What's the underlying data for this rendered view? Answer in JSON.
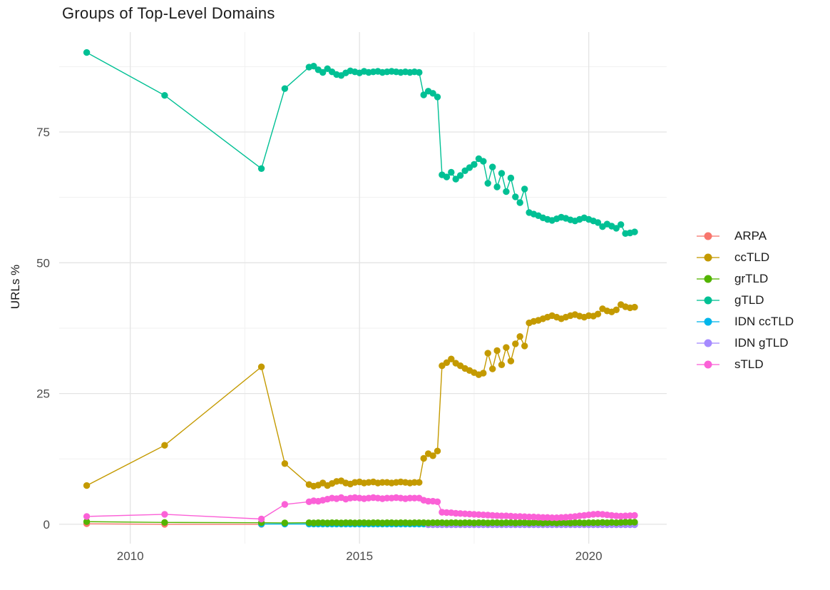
{
  "title": "Groups of Top-Level Domains",
  "legend": {
    "items": [
      {
        "label": "ARPA",
        "color": "#F8766D"
      },
      {
        "label": "ccTLD",
        "color": "#C49A00"
      },
      {
        "label": "grTLD",
        "color": "#53B400"
      },
      {
        "label": "gTLD",
        "color": "#00C094"
      },
      {
        "label": "IDN ccTLD",
        "color": "#00B6EB"
      },
      {
        "label": "IDN gTLD",
        "color": "#A58AFF"
      },
      {
        "label": "sTLD",
        "color": "#FB61D7"
      }
    ]
  },
  "chart_data": {
    "type": "line",
    "title": "Groups of Top-Level Domains",
    "xlabel": "",
    "ylabel": "URLs %",
    "x_ticks": [
      2010,
      2015,
      2020
    ],
    "x_minor": [
      2012.5,
      2017.5
    ],
    "y_ticks": [
      0,
      25,
      50,
      75
    ],
    "y_minor": [
      12.5,
      37.5,
      62.5,
      87.5
    ],
    "xlim": [
      2008.45,
      2021.7
    ],
    "ylim": [
      -3.7,
      94.1
    ],
    "grid": true,
    "legend_position": "right",
    "major_grid_color": "#e4e4e4",
    "minor_grid_color": "#f1f1f1",
    "tick_label_color": "#4d4d4d",
    "draw_order": [
      "ARPA",
      "IDN ccTLD",
      "IDN gTLD",
      "ccTLD",
      "grTLD",
      "gTLD",
      "sTLD"
    ],
    "x_main": [
      2009.05,
      2010.75,
      2012.86,
      2013.37,
      2013.9,
      2014,
      2014.1,
      2014.2,
      2014.3,
      2014.4,
      2014.5,
      2014.6,
      2014.7,
      2014.8,
      2014.9,
      2015,
      2015.1,
      2015.2,
      2015.3,
      2015.4,
      2015.5,
      2015.6,
      2015.7,
      2015.8,
      2015.9,
      2016,
      2016.1,
      2016.2,
      2016.3,
      2016.4,
      2016.5,
      2016.6,
      2016.7,
      2016.8,
      2016.9,
      2017,
      2017.1,
      2017.2,
      2017.3,
      2017.4,
      2017.5,
      2017.6,
      2017.7,
      2017.8,
      2017.9,
      2018,
      2018.1,
      2018.2,
      2018.3,
      2018.4,
      2018.5,
      2018.6,
      2018.7,
      2018.8,
      2018.9,
      2019,
      2019.1,
      2019.2,
      2019.3,
      2019.4,
      2019.5,
      2019.6,
      2019.7,
      2019.8,
      2019.9,
      2020,
      2020.1,
      2020.2,
      2020.3,
      2020.4,
      2020.5,
      2020.6,
      2020.7,
      2020.8,
      2020.9,
      2021
    ],
    "series": [
      {
        "name": "ARPA",
        "color": "#F8766D",
        "xi": 0,
        "y": [
          0.1,
          0,
          0
        ]
      },
      {
        "name": "ccTLD",
        "color": "#C49A00",
        "xi": 0,
        "y": [
          7.4,
          15.1,
          30.1,
          11.6,
          7.6,
          7.3,
          7.5,
          7.9,
          7.4,
          7.8,
          8.2,
          8.3,
          7.9,
          7.7,
          8,
          8.1,
          7.9,
          8,
          8.1,
          7.9,
          8,
          8,
          7.9,
          8,
          8.1,
          8,
          7.9,
          8,
          8,
          12.6,
          13.5,
          13.1,
          14,
          30.3,
          30.9,
          31.6,
          30.8,
          30.3,
          29.8,
          29.4,
          29,
          28.6,
          28.9,
          32.7,
          29.7,
          33.2,
          30.5,
          33.8,
          31.2,
          34.5,
          35.9,
          34.1,
          38.5,
          38.8,
          39,
          39.3,
          39.6,
          39.9,
          39.6,
          39.3,
          39.6,
          39.9,
          40.1,
          39.8,
          39.6,
          39.9,
          39.8,
          40.2,
          41.2,
          40.8,
          40.6,
          41,
          42,
          41.6,
          41.4,
          41.5
        ]
      },
      {
        "name": "grTLD",
        "color": "#53B400",
        "xi": 0,
        "y": [
          0.5,
          0.35,
          0.3,
          0.25,
          0.3,
          0.25,
          0.3,
          0.3,
          0.25,
          0.3,
          0.3,
          0.25,
          0.3,
          0.3,
          0.25,
          0.3,
          0.3,
          0.25,
          0.3,
          0.3,
          0.25,
          0.3,
          0.3,
          0.25,
          0.3,
          0.3,
          0.25,
          0.3,
          0.3,
          0.3,
          0.25,
          0.3,
          0.3,
          0.3,
          0.25,
          0.3,
          0.3,
          0.25,
          0.3,
          0.3,
          0.25,
          0.3,
          0.3,
          0.25,
          0.3,
          0.3,
          0.25,
          0.3,
          0.3,
          0.25,
          0.3,
          0.3,
          0.25,
          0.3,
          0.3,
          0.25,
          0.3,
          0.3,
          0.25,
          0.3,
          0.3,
          0.25,
          0.3,
          0.3,
          0.25,
          0.3,
          0.3,
          0.3,
          0.35,
          0.3,
          0.35,
          0.3,
          0.35,
          0.4,
          0.4,
          0.4
        ]
      },
      {
        "name": "gTLD",
        "color": "#00C094",
        "xi": 0,
        "y": [
          90.2,
          82,
          68,
          83.3,
          87.4,
          87.6,
          86.9,
          86.4,
          87.1,
          86.5,
          86,
          85.8,
          86.3,
          86.7,
          86.5,
          86.3,
          86.6,
          86.4,
          86.5,
          86.6,
          86.4,
          86.5,
          86.6,
          86.5,
          86.4,
          86.5,
          86.4,
          86.5,
          86.4,
          82.1,
          82.8,
          82.4,
          81.7,
          66.8,
          66.4,
          67.3,
          66,
          66.7,
          67.6,
          68.2,
          68.8,
          69.9,
          69.4,
          65.2,
          68.3,
          64.5,
          67.1,
          63.6,
          66.2,
          62.6,
          61.5,
          64.1,
          59.6,
          59.3,
          59,
          58.6,
          58.3,
          58.1,
          58.4,
          58.7,
          58.5,
          58.2,
          58,
          58.3,
          58.6,
          58.3,
          58,
          57.7,
          56.9,
          57.4,
          57,
          56.6,
          57.3,
          55.6,
          55.7,
          55.9
        ]
      },
      {
        "name": "IDN ccTLD",
        "color": "#00B6EB",
        "xi": 2,
        "count": 74,
        "yconst": 0.05
      },
      {
        "name": "IDN gTLD",
        "color": "#A58AFF",
        "xi": 30,
        "count": 46,
        "yconst": -0.1
      },
      {
        "name": "sTLD",
        "color": "#FB61D7",
        "xi": 0,
        "y": [
          1.5,
          1.9,
          1,
          3.8,
          4.3,
          4.5,
          4.4,
          4.6,
          4.8,
          5,
          4.9,
          5.1,
          4.8,
          5,
          5.1,
          5,
          4.9,
          5,
          5.1,
          5,
          4.9,
          5,
          5,
          5.1,
          5,
          4.9,
          5,
          5,
          5,
          4.6,
          4.4,
          4.4,
          4.3,
          2.3,
          2.25,
          2.2,
          2.1,
          2.05,
          2,
          1.95,
          1.9,
          1.85,
          1.8,
          1.75,
          1.7,
          1.65,
          1.6,
          1.6,
          1.55,
          1.5,
          1.5,
          1.45,
          1.4,
          1.4,
          1.35,
          1.3,
          1.3,
          1.25,
          1.25,
          1.3,
          1.35,
          1.4,
          1.5,
          1.6,
          1.7,
          1.8,
          1.9,
          1.95,
          1.9,
          1.8,
          1.7,
          1.6,
          1.55,
          1.6,
          1.65,
          1.7
        ]
      }
    ]
  }
}
